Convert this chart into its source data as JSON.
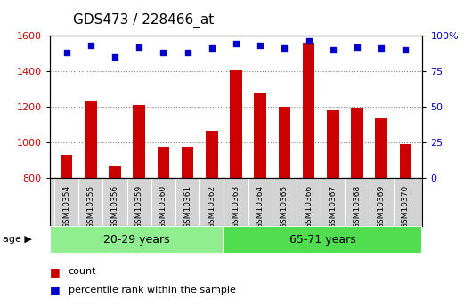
{
  "title": "GDS473 / 228466_at",
  "categories": [
    "GSM10354",
    "GSM10355",
    "GSM10356",
    "GSM10359",
    "GSM10360",
    "GSM10361",
    "GSM10362",
    "GSM10363",
    "GSM10364",
    "GSM10365",
    "GSM10366",
    "GSM10367",
    "GSM10368",
    "GSM10369",
    "GSM10370"
  ],
  "bar_values": [
    930,
    1235,
    870,
    1210,
    975,
    975,
    1065,
    1405,
    1275,
    1200,
    1560,
    1180,
    1195,
    1135,
    990
  ],
  "percentile_values": [
    88,
    93,
    85,
    92,
    88,
    88,
    91,
    94,
    93,
    91,
    96,
    90,
    92,
    91,
    90
  ],
  "bar_color": "#cc0000",
  "dot_color": "#0000cc",
  "ylim_left": [
    800,
    1600
  ],
  "ylim_right": [
    0,
    100
  ],
  "yticks_left": [
    800,
    1000,
    1200,
    1400,
    1600
  ],
  "yticks_right": [
    0,
    25,
    50,
    75,
    100
  ],
  "group1_label": "20-29 years",
  "group2_label": "65-71 years",
  "group1_count": 7,
  "group2_count": 8,
  "age_label": "age",
  "legend_bar_label": "count",
  "legend_dot_label": "percentile rank within the sample",
  "group1_color": "#90ee90",
  "group2_color": "#50dd50",
  "xtick_bg_color": "#d3d3d3",
  "plot_bg": "#ffffff",
  "title_fontsize": 11,
  "tick_fontsize": 8,
  "bar_width": 0.5,
  "right_ytick_labels": [
    "0",
    "25",
    "50",
    "75",
    "100%"
  ]
}
